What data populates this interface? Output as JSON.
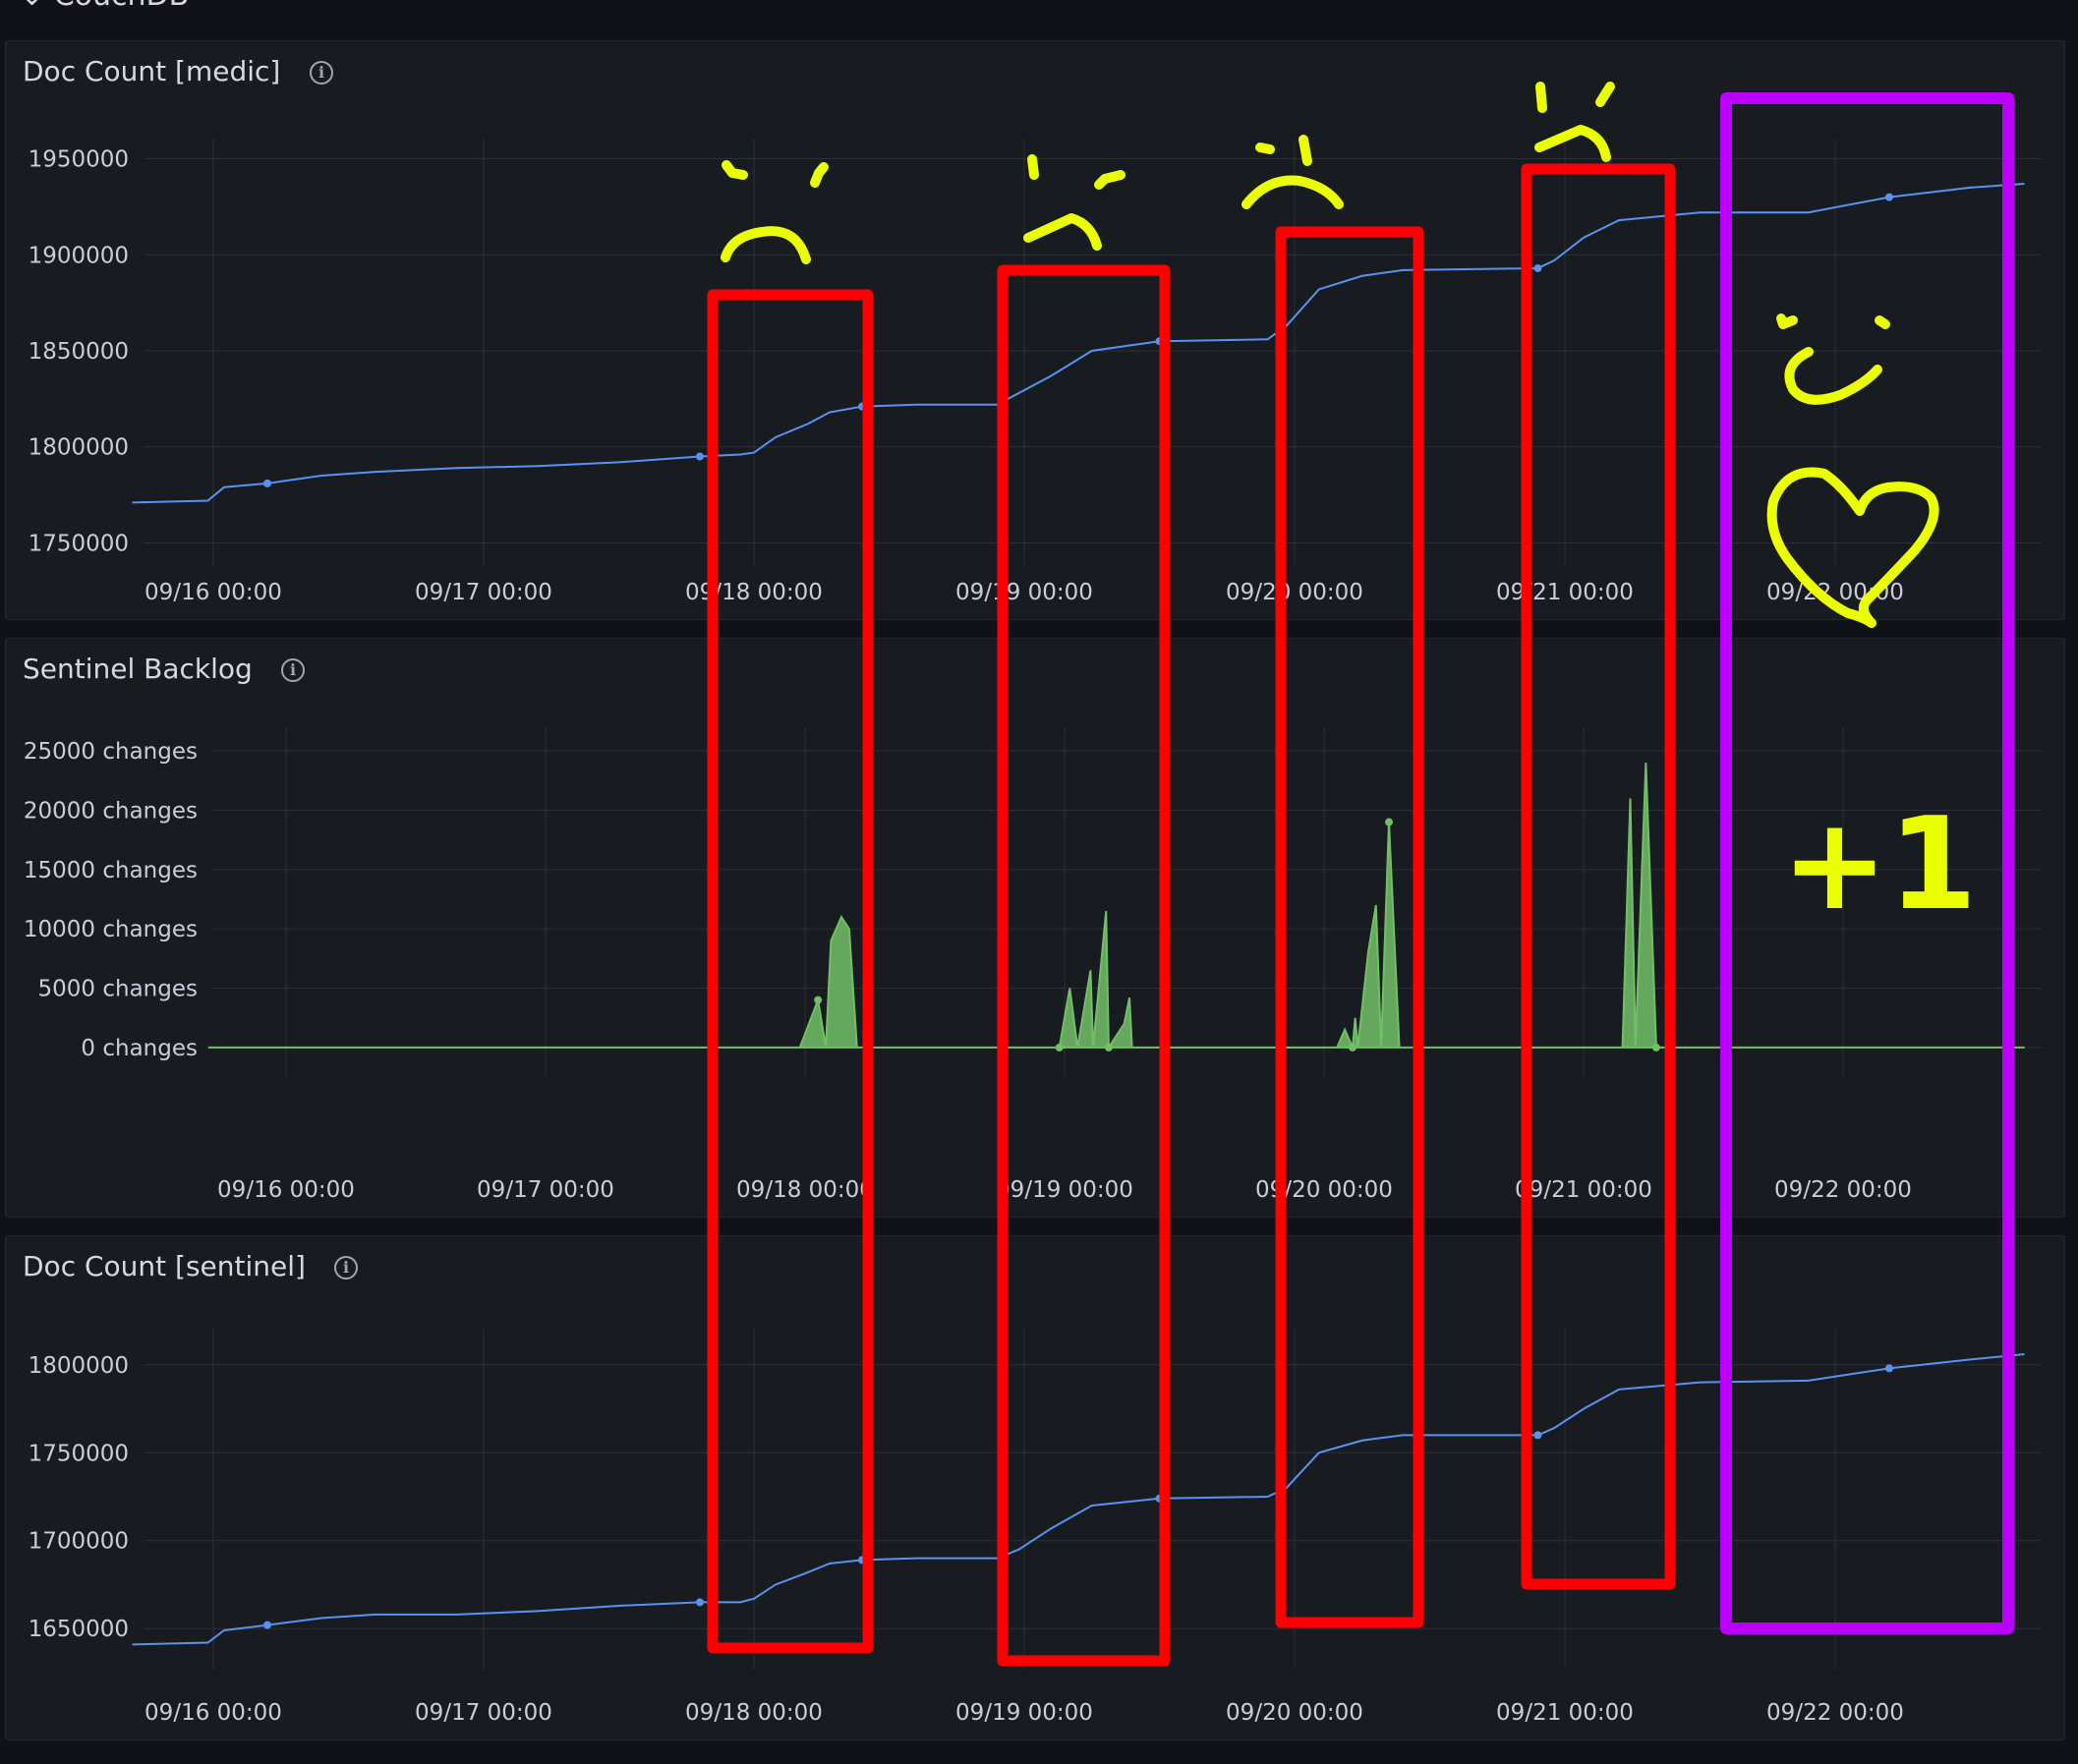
{
  "section": {
    "title": "CouchDB"
  },
  "panels": [
    {
      "title": "Doc Count [medic]",
      "chart_data": {
        "type": "line",
        "series": [
          {
            "values": [
              [
                -0.3,
                1771000
              ],
              [
                -0.02,
                1772000
              ],
              [
                0.04,
                1779000
              ],
              [
                0.2,
                1781000
              ],
              [
                0.4,
                1785000
              ],
              [
                0.6,
                1787000
              ],
              [
                0.9,
                1789000
              ],
              [
                1.2,
                1790000
              ],
              [
                1.5,
                1792000
              ],
              [
                1.8,
                1795000
              ],
              [
                1.95,
                1796000
              ],
              [
                2.0,
                1797000
              ],
              [
                2.08,
                1805000
              ],
              [
                2.2,
                1812000
              ],
              [
                2.28,
                1818000
              ],
              [
                2.4,
                1821000
              ],
              [
                2.6,
                1822000
              ],
              [
                2.9,
                1822000
              ],
              [
                2.98,
                1828000
              ],
              [
                3.1,
                1837000
              ],
              [
                3.25,
                1850000
              ],
              [
                3.5,
                1855000
              ],
              [
                3.9,
                1856000
              ],
              [
                3.97,
                1863000
              ],
              [
                4.09,
                1882000
              ],
              [
                4.25,
                1889000
              ],
              [
                4.4,
                1892000
              ],
              [
                4.9,
                1893000
              ],
              [
                4.96,
                1897000
              ],
              [
                5.07,
                1909000
              ],
              [
                5.2,
                1918000
              ],
              [
                5.5,
                1922000
              ],
              [
                5.9,
                1922000
              ],
              [
                6.2,
                1930000
              ],
              [
                6.5,
                1935000
              ],
              [
                6.7,
                1937000
              ]
            ]
          }
        ],
        "ylim": [
          1740000,
          1960000
        ],
        "y_ticks": [
          "1950000",
          "1900000",
          "1850000",
          "1800000",
          "1750000"
        ],
        "x_ticks": [
          "09/16 00:00",
          "09/17 00:00",
          "09/18 00:00",
          "09/19 00:00",
          "09/20 00:00",
          "09/21 00:00",
          "09/22 00:00"
        ],
        "line_color": "#5794f2"
      }
    },
    {
      "title": "Sentinel Backlog",
      "chart_data": {
        "type": "area",
        "series": [
          {
            "values": [
              [
                -0.3,
                0
              ],
              [
                1.8,
                0
              ],
              [
                1.98,
                0
              ],
              [
                2.05,
                4000
              ],
              [
                2.08,
                0
              ],
              [
                2.1,
                9000
              ],
              [
                2.14,
                11000
              ],
              [
                2.17,
                10000
              ],
              [
                2.2,
                0
              ],
              [
                2.98,
                0
              ],
              [
                3.02,
                5000
              ],
              [
                3.05,
                0
              ],
              [
                3.1,
                6500
              ],
              [
                3.11,
                0
              ],
              [
                3.16,
                11500
              ],
              [
                3.17,
                0
              ],
              [
                3.23,
                2000
              ],
              [
                3.25,
                4200
              ],
              [
                3.26,
                0
              ],
              [
                4.05,
                0
              ],
              [
                4.08,
                1500
              ],
              [
                4.11,
                0
              ],
              [
                4.12,
                2500
              ],
              [
                4.13,
                0
              ],
              [
                4.17,
                8000
              ],
              [
                4.2,
                12000
              ],
              [
                4.22,
                0
              ],
              [
                4.25,
                19000
              ],
              [
                4.29,
                0
              ],
              [
                5.15,
                0
              ],
              [
                5.18,
                21000
              ],
              [
                5.2,
                0
              ],
              [
                5.24,
                24000
              ],
              [
                5.28,
                0
              ],
              [
                6.7,
                0
              ]
            ]
          }
        ],
        "ylim": [
          -2000,
          27000
        ],
        "y_ticks": [
          "25000 changes",
          "20000 changes",
          "15000 changes",
          "10000 changes",
          "5000 changes",
          "0 changes"
        ],
        "x_ticks": [
          "09/16 00:00",
          "09/17 00:00",
          "09/18 00:00",
          "09/19 00:00",
          "09/20 00:00",
          "09/21 00:00",
          "09/22 00:00"
        ],
        "line_color": "#73bf69"
      }
    },
    {
      "title": "Doc Count [sentinel]",
      "chart_data": {
        "type": "line",
        "series": [
          {
            "values": [
              [
                -0.3,
                1641000
              ],
              [
                -0.02,
                1642000
              ],
              [
                0.04,
                1649000
              ],
              [
                0.2,
                1652000
              ],
              [
                0.4,
                1656000
              ],
              [
                0.6,
                1658000
              ],
              [
                0.9,
                1658000
              ],
              [
                1.2,
                1660000
              ],
              [
                1.5,
                1663000
              ],
              [
                1.8,
                1665000
              ],
              [
                1.95,
                1665000
              ],
              [
                2.0,
                1667000
              ],
              [
                2.08,
                1675000
              ],
              [
                2.2,
                1682000
              ],
              [
                2.28,
                1687000
              ],
              [
                2.4,
                1689000
              ],
              [
                2.6,
                1690000
              ],
              [
                2.9,
                1690000
              ],
              [
                2.98,
                1695000
              ],
              [
                3.1,
                1707000
              ],
              [
                3.25,
                1720000
              ],
              [
                3.5,
                1724000
              ],
              [
                3.9,
                1725000
              ],
              [
                3.97,
                1730000
              ],
              [
                4.09,
                1750000
              ],
              [
                4.25,
                1757000
              ],
              [
                4.4,
                1760000
              ],
              [
                4.9,
                1760000
              ],
              [
                4.96,
                1764000
              ],
              [
                5.07,
                1775000
              ],
              [
                5.2,
                1786000
              ],
              [
                5.5,
                1790000
              ],
              [
                5.9,
                1791000
              ],
              [
                6.2,
                1798000
              ],
              [
                6.5,
                1803000
              ],
              [
                6.7,
                1806000
              ]
            ]
          }
        ],
        "ylim": [
          1630000,
          1820000
        ],
        "y_ticks": [
          "1800000",
          "1750000",
          "1700000",
          "1650000"
        ],
        "x_ticks": [
          "09/16 00:00",
          "09/17 00:00",
          "09/18 00:00",
          "09/19 00:00",
          "09/20 00:00",
          "09/21 00:00",
          "09/22 00:00"
        ],
        "line_color": "#5794f2"
      }
    }
  ],
  "annotations": {
    "plus_one": "+1",
    "sad_box_color": "#ff0000",
    "happy_box_color": "#bb00ff",
    "doodle_color": "#eaff00"
  }
}
